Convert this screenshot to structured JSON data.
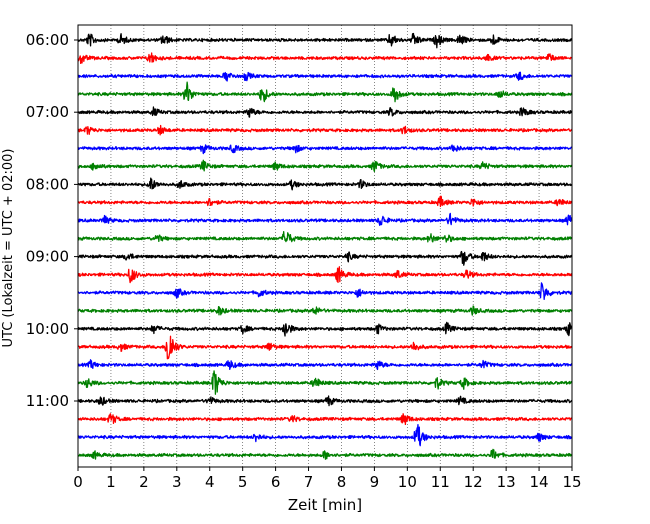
{
  "chart_data": {
    "type": "line",
    "xlabel": "Zeit  [min]",
    "ylabel": "UTC (Lokalzeit = UTC + 02:00)",
    "xlim": [
      0,
      15
    ],
    "x_ticks": [
      "0",
      "1",
      "2",
      "3",
      "4",
      "5",
      "6",
      "7",
      "8",
      "9",
      "10",
      "11",
      "12",
      "13",
      "14",
      "15"
    ],
    "y_tick_labels": [
      "06:00",
      "07:00",
      "08:00",
      "09:00",
      "10:00",
      "11:00"
    ],
    "grid": "vertical dotted",
    "trace_interval_min": 15,
    "trace_colors": [
      "#000000",
      "#ff0000",
      "#0000ff",
      "#008000"
    ],
    "traces": [
      {
        "start": "06:00",
        "color": "#000000",
        "events": [
          {
            "t": 0.35,
            "a": 0.5
          },
          {
            "t": 1.3,
            "a": 0.4
          },
          {
            "t": 2.6,
            "a": 0.4
          },
          {
            "t": 9.5,
            "a": 0.5
          },
          {
            "t": 10.2,
            "a": 0.5
          },
          {
            "t": 10.9,
            "a": 0.5
          },
          {
            "t": 11.6,
            "a": 0.4
          },
          {
            "t": 12.6,
            "a": 0.4
          }
        ]
      },
      {
        "start": "06:15",
        "color": "#ff0000",
        "events": [
          {
            "t": 0.1,
            "a": 0.4
          },
          {
            "t": 2.2,
            "a": 0.45
          },
          {
            "t": 12.4,
            "a": 0.3
          },
          {
            "t": 14.3,
            "a": 0.3
          }
        ]
      },
      {
        "start": "06:30",
        "color": "#0000ff",
        "events": [
          {
            "t": 4.5,
            "a": 0.4
          },
          {
            "t": 5.1,
            "a": 0.3
          },
          {
            "t": 13.4,
            "a": 0.3
          }
        ]
      },
      {
        "start": "06:45",
        "color": "#008000",
        "events": [
          {
            "t": 3.3,
            "a": 0.9
          },
          {
            "t": 5.6,
            "a": 0.7
          },
          {
            "t": 9.6,
            "a": 0.7
          },
          {
            "t": 12.8,
            "a": 0.3
          }
        ]
      },
      {
        "start": "07:00",
        "color": "#000000",
        "events": [
          {
            "t": 2.3,
            "a": 0.3
          },
          {
            "t": 5.2,
            "a": 0.4
          },
          {
            "t": 9.5,
            "a": 0.3
          },
          {
            "t": 13.5,
            "a": 0.35
          }
        ]
      },
      {
        "start": "07:15",
        "color": "#ff0000",
        "events": [
          {
            "t": 0.3,
            "a": 0.3
          },
          {
            "t": 2.5,
            "a": 0.3
          },
          {
            "t": 9.9,
            "a": 0.3
          }
        ]
      },
      {
        "start": "07:30",
        "color": "#0000ff",
        "events": [
          {
            "t": 3.8,
            "a": 0.3
          },
          {
            "t": 4.7,
            "a": 0.3
          },
          {
            "t": 6.6,
            "a": 0.3
          },
          {
            "t": 11.4,
            "a": 0.3
          }
        ]
      },
      {
        "start": "07:45",
        "color": "#008000",
        "events": [
          {
            "t": 0.5,
            "a": 0.3
          },
          {
            "t": 3.8,
            "a": 0.4
          },
          {
            "t": 6.0,
            "a": 0.3
          },
          {
            "t": 9.0,
            "a": 0.45
          },
          {
            "t": 12.3,
            "a": 0.3
          }
        ]
      },
      {
        "start": "08:00",
        "color": "#000000",
        "events": [
          {
            "t": 2.2,
            "a": 0.55
          },
          {
            "t": 3.1,
            "a": 0.3
          },
          {
            "t": 6.5,
            "a": 0.3
          },
          {
            "t": 8.6,
            "a": 0.3
          }
        ]
      },
      {
        "start": "08:15",
        "color": "#ff0000",
        "events": [
          {
            "t": 4.0,
            "a": 0.3
          },
          {
            "t": 11.0,
            "a": 0.4
          },
          {
            "t": 12.0,
            "a": 0.3
          },
          {
            "t": 14.6,
            "a": 0.3
          }
        ]
      },
      {
        "start": "08:30",
        "color": "#0000ff",
        "events": [
          {
            "t": 0.8,
            "a": 0.3
          },
          {
            "t": 9.2,
            "a": 0.45
          },
          {
            "t": 11.3,
            "a": 0.45
          },
          {
            "t": 14.9,
            "a": 0.4
          }
        ]
      },
      {
        "start": "08:45",
        "color": "#008000",
        "events": [
          {
            "t": 2.4,
            "a": 0.3
          },
          {
            "t": 6.3,
            "a": 0.75
          },
          {
            "t": 10.7,
            "a": 0.35
          },
          {
            "t": 11.2,
            "a": 0.3
          }
        ]
      },
      {
        "start": "09:00",
        "color": "#000000",
        "events": [
          {
            "t": 1.5,
            "a": 0.3
          },
          {
            "t": 8.2,
            "a": 0.3
          },
          {
            "t": 11.7,
            "a": 0.65
          },
          {
            "t": 12.3,
            "a": 0.4
          }
        ]
      },
      {
        "start": "09:15",
        "color": "#ff0000",
        "events": [
          {
            "t": 1.6,
            "a": 0.65
          },
          {
            "t": 7.9,
            "a": 0.65
          },
          {
            "t": 9.7,
            "a": 0.3
          },
          {
            "t": 11.8,
            "a": 0.35
          }
        ]
      },
      {
        "start": "09:30",
        "color": "#0000ff",
        "events": [
          {
            "t": 3.0,
            "a": 0.35
          },
          {
            "t": 5.5,
            "a": 0.3
          },
          {
            "t": 8.5,
            "a": 0.3
          },
          {
            "t": 14.1,
            "a": 0.8
          }
        ]
      },
      {
        "start": "09:45",
        "color": "#008000",
        "events": [
          {
            "t": 4.3,
            "a": 0.3
          },
          {
            "t": 7.2,
            "a": 0.3
          },
          {
            "t": 12.0,
            "a": 0.3
          }
        ]
      },
      {
        "start": "10:00",
        "color": "#000000",
        "events": [
          {
            "t": 2.3,
            "a": 0.3
          },
          {
            "t": 5.0,
            "a": 0.3
          },
          {
            "t": 6.3,
            "a": 0.65
          },
          {
            "t": 9.1,
            "a": 0.35
          },
          {
            "t": 11.2,
            "a": 0.4
          },
          {
            "t": 14.9,
            "a": 0.45
          }
        ]
      },
      {
        "start": "10:15",
        "color": "#ff0000",
        "events": [
          {
            "t": 1.3,
            "a": 0.3
          },
          {
            "t": 2.75,
            "a": 1.7
          },
          {
            "t": 5.8,
            "a": 0.3
          },
          {
            "t": 10.2,
            "a": 0.35
          }
        ]
      },
      {
        "start": "10:30",
        "color": "#0000ff",
        "events": [
          {
            "t": 0.4,
            "a": 0.3
          },
          {
            "t": 4.6,
            "a": 0.35
          },
          {
            "t": 9.1,
            "a": 0.35
          },
          {
            "t": 12.3,
            "a": 0.3
          }
        ]
      },
      {
        "start": "10:45",
        "color": "#008000",
        "events": [
          {
            "t": 0.3,
            "a": 0.35
          },
          {
            "t": 4.15,
            "a": 1.1
          },
          {
            "t": 7.2,
            "a": 0.45
          },
          {
            "t": 10.9,
            "a": 0.45
          },
          {
            "t": 11.7,
            "a": 0.4
          }
        ]
      },
      {
        "start": "11:00",
        "color": "#000000",
        "events": [
          {
            "t": 0.7,
            "a": 0.35
          },
          {
            "t": 4.0,
            "a": 0.3
          },
          {
            "t": 7.6,
            "a": 0.35
          },
          {
            "t": 11.6,
            "a": 0.3
          }
        ]
      },
      {
        "start": "11:15",
        "color": "#ff0000",
        "events": [
          {
            "t": 1.0,
            "a": 0.45
          },
          {
            "t": 9.9,
            "a": 0.45
          },
          {
            "t": 6.5,
            "a": 0.25
          }
        ]
      },
      {
        "start": "11:30",
        "color": "#0000ff",
        "events": [
          {
            "t": 5.4,
            "a": 0.3
          },
          {
            "t": 10.3,
            "a": 1.1
          },
          {
            "t": 14.0,
            "a": 0.3
          }
        ]
      },
      {
        "start": "11:45",
        "color": "#008000",
        "events": [
          {
            "t": 0.5,
            "a": 0.25
          },
          {
            "t": 7.5,
            "a": 0.3
          },
          {
            "t": 12.6,
            "a": 0.4
          }
        ]
      }
    ]
  }
}
